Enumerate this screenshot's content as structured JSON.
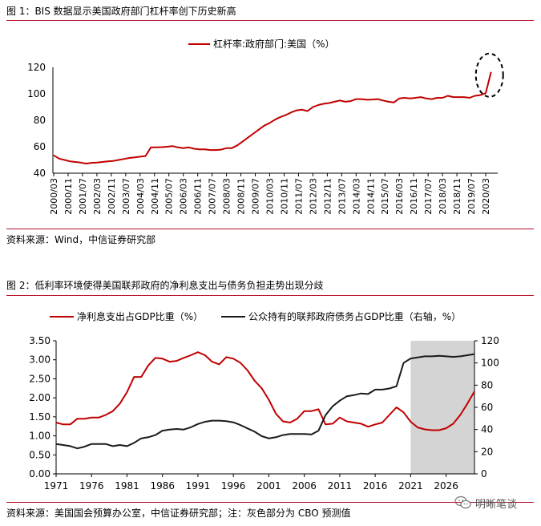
{
  "figure1": {
    "title": "图 1：BIS 数据显示美国政府部门杠杆率创下历史新高",
    "source": "资料来源：Wind，中信证券研究部"
  },
  "figure2": {
    "title": "图 2：低利率环境使得美国联邦政府的净利息支出与债务负担走势出现分歧",
    "source": "资料来源：美国国会预算办公室，中信证券研究部；注：灰色部分为 CBO 预测值"
  },
  "watermark": {
    "text": "明晰笔谈",
    "icon": "wechat-icon"
  },
  "chart_data": [
    {
      "type": "line",
      "legend_position": "top-center",
      "ylim": [
        40,
        120
      ],
      "yticks": [
        40,
        60,
        80,
        100,
        120
      ],
      "xticks": [
        "2000/03",
        "2000/11",
        "2001/07",
        "2002/03",
        "2002/11",
        "2003/07",
        "2004/03",
        "2004/11",
        "2005/07",
        "2006/03",
        "2006/11",
        "2007/07",
        "2008/03",
        "2008/11",
        "2009/07",
        "2010/03",
        "2010/11",
        "2011/07",
        "2012/03",
        "2012/11",
        "2013/07",
        "2014/03",
        "2014/11",
        "2015/07",
        "2016/03",
        "2016/11",
        "2017/07",
        "2018/03",
        "2018/11",
        "2019/07",
        "2020/03"
      ],
      "annotation": "dashed-ellipse around latest value",
      "series": [
        {
          "name": "杠杆率:政府部门:美国（%）",
          "color": "#c00000",
          "points": [
            [
              "2000/03",
              53.5
            ],
            [
              "2000/06",
              51
            ],
            [
              "2000/09",
              50
            ],
            [
              "2000/12",
              49
            ],
            [
              "2001/03",
              48.5
            ],
            [
              "2001/06",
              48
            ],
            [
              "2001/09",
              47.3
            ],
            [
              "2001/12",
              47.8
            ],
            [
              "2002/03",
              48
            ],
            [
              "2002/06",
              48.5
            ],
            [
              "2002/09",
              49
            ],
            [
              "2002/12",
              49.3
            ],
            [
              "2003/03",
              50
            ],
            [
              "2003/06",
              50.7
            ],
            [
              "2003/09",
              51.5
            ],
            [
              "2003/12",
              52
            ],
            [
              "2004/03",
              52.5
            ],
            [
              "2004/06",
              53
            ],
            [
              "2004/09",
              59.5
            ],
            [
              "2004/12",
              59.6
            ],
            [
              "2005/03",
              59.7
            ],
            [
              "2005/06",
              60
            ],
            [
              "2005/09",
              60.5
            ],
            [
              "2005/12",
              59.5
            ],
            [
              "2006/03",
              59
            ],
            [
              "2006/06",
              59.5
            ],
            [
              "2006/09",
              58.5
            ],
            [
              "2006/12",
              58
            ],
            [
              "2007/03",
              58
            ],
            [
              "2007/06",
              57.5
            ],
            [
              "2007/09",
              57.5
            ],
            [
              "2007/12",
              57.8
            ],
            [
              "2008/03",
              59
            ],
            [
              "2008/06",
              59
            ],
            [
              "2008/09",
              61
            ],
            [
              "2008/12",
              64
            ],
            [
              "2009/03",
              67
            ],
            [
              "2009/06",
              70
            ],
            [
              "2009/09",
              73
            ],
            [
              "2009/12",
              76
            ],
            [
              "2010/03",
              78
            ],
            [
              "2010/06",
              80.5
            ],
            [
              "2010/09",
              82.5
            ],
            [
              "2010/12",
              84
            ],
            [
              "2011/03",
              86
            ],
            [
              "2011/06",
              87.5
            ],
            [
              "2011/09",
              88
            ],
            [
              "2011/12",
              87
            ],
            [
              "2012/03",
              90
            ],
            [
              "2012/06",
              91.5
            ],
            [
              "2012/09",
              92.5
            ],
            [
              "2012/12",
              93
            ],
            [
              "2013/03",
              94
            ],
            [
              "2013/06",
              95
            ],
            [
              "2013/09",
              94
            ],
            [
              "2013/12",
              94.5
            ],
            [
              "2014/03",
              96
            ],
            [
              "2014/06",
              96
            ],
            [
              "2014/09",
              95.5
            ],
            [
              "2014/12",
              95.7
            ],
            [
              "2015/03",
              96
            ],
            [
              "2015/06",
              95
            ],
            [
              "2015/09",
              94
            ],
            [
              "2015/12",
              93.5
            ],
            [
              "2016/03",
              96.5
            ],
            [
              "2016/06",
              97
            ],
            [
              "2016/09",
              96.5
            ],
            [
              "2016/12",
              97
            ],
            [
              "2017/03",
              97.5
            ],
            [
              "2017/06",
              96.5
            ],
            [
              "2017/09",
              96
            ],
            [
              "2017/12",
              97
            ],
            [
              "2018/03",
              97
            ],
            [
              "2018/06",
              98.5
            ],
            [
              "2018/09",
              97.5
            ],
            [
              "2018/12",
              97.5
            ],
            [
              "2019/03",
              97.5
            ],
            [
              "2019/06",
              97
            ],
            [
              "2019/09",
              98.5
            ],
            [
              "2019/12",
              99
            ],
            [
              "2020/03",
              100.5
            ],
            [
              "2020/06",
              116.5
            ]
          ]
        }
      ]
    },
    {
      "type": "line",
      "legend_position": "top",
      "x_range": [
        1971,
        2030
      ],
      "xticks": [
        1971,
        1976,
        1981,
        1986,
        1991,
        1996,
        2001,
        2006,
        2011,
        2016,
        2021,
        2026
      ],
      "ylim_left": [
        0,
        3.5
      ],
      "yticks_left": [
        "0.00",
        "0.50",
        "1.00",
        "1.50",
        "2.00",
        "2.50",
        "3.00",
        "3.50"
      ],
      "ylim_right": [
        0,
        120
      ],
      "yticks_right": [
        0,
        20,
        40,
        60,
        80,
        100,
        120
      ],
      "shaded_region": [
        2021,
        2030
      ],
      "series": [
        {
          "name": "净利息支出占GDP比重（%）",
          "axis": "left",
          "color": "#c00000",
          "x": [
            1971,
            1972,
            1973,
            1974,
            1975,
            1976,
            1977,
            1978,
            1979,
            1980,
            1981,
            1982,
            1983,
            1984,
            1985,
            1986,
            1987,
            1988,
            1989,
            1990,
            1991,
            1992,
            1993,
            1994,
            1995,
            1996,
            1997,
            1998,
            1999,
            2000,
            2001,
            2002,
            2003,
            2004,
            2005,
            2006,
            2007,
            2008,
            2009,
            2010,
            2011,
            2012,
            2013,
            2014,
            2015,
            2016,
            2017,
            2018,
            2019,
            2020,
            2021,
            2022,
            2023,
            2024,
            2025,
            2026,
            2027,
            2028,
            2029,
            2030
          ],
          "values": [
            1.35,
            1.3,
            1.3,
            1.45,
            1.45,
            1.48,
            1.48,
            1.55,
            1.65,
            1.85,
            2.15,
            2.55,
            2.55,
            2.85,
            3.05,
            3.03,
            2.95,
            2.97,
            3.05,
            3.12,
            3.2,
            3.12,
            2.95,
            2.88,
            3.07,
            3.03,
            2.92,
            2.72,
            2.45,
            2.25,
            1.95,
            1.58,
            1.38,
            1.35,
            1.45,
            1.65,
            1.65,
            1.7,
            1.3,
            1.32,
            1.48,
            1.38,
            1.35,
            1.32,
            1.24,
            1.3,
            1.35,
            1.55,
            1.75,
            1.62,
            1.37,
            1.22,
            1.17,
            1.15,
            1.15,
            1.2,
            1.32,
            1.55,
            1.85,
            2.17
          ]
        },
        {
          "name": "公众持有的联邦政府债务占GDP比重（右轴，%）",
          "axis": "right",
          "color": "#1a1a1a",
          "x": [
            1971,
            1972,
            1973,
            1974,
            1975,
            1976,
            1977,
            1978,
            1979,
            1980,
            1981,
            1982,
            1983,
            1984,
            1985,
            1986,
            1987,
            1988,
            1989,
            1990,
            1991,
            1992,
            1993,
            1994,
            1995,
            1996,
            1997,
            1998,
            1999,
            2000,
            2001,
            2002,
            2003,
            2004,
            2005,
            2006,
            2007,
            2008,
            2009,
            2010,
            2011,
            2012,
            2013,
            2014,
            2015,
            2016,
            2017,
            2018,
            2019,
            2020,
            2021,
            2022,
            2023,
            2024,
            2025,
            2026,
            2027,
            2028,
            2029,
            2030
          ],
          "values": [
            27,
            26,
            25,
            23,
            24.5,
            27,
            27,
            27,
            25,
            26,
            25,
            28,
            32,
            33,
            35,
            39,
            40,
            40.5,
            40,
            42,
            45,
            47,
            48,
            48,
            47.5,
            46.5,
            44,
            41,
            38,
            34,
            32,
            33,
            35,
            36,
            36,
            36,
            35.5,
            39,
            53,
            61,
            66,
            70,
            71,
            72.5,
            72,
            76,
            76,
            77,
            79,
            100,
            104,
            105,
            106,
            106,
            106.5,
            106,
            105.5,
            106,
            107,
            108
          ]
        }
      ]
    }
  ]
}
